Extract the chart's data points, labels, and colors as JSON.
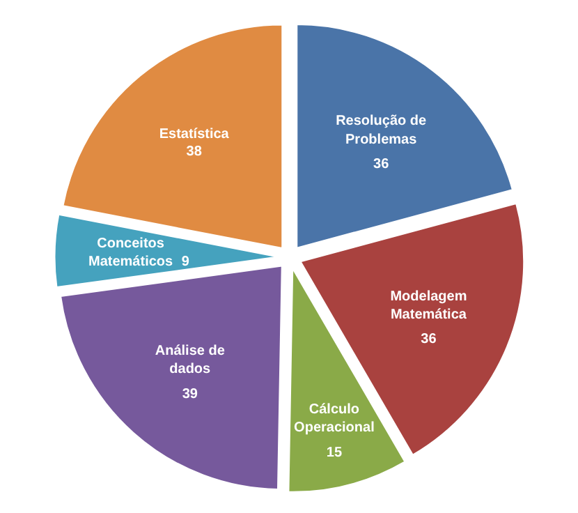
{
  "chart_data": {
    "type": "pie",
    "categories": [
      "Resolução de Problemas",
      "Modelagem Matemática",
      "Cálculo Operacional",
      "Análise de dados",
      "Conceitos Matemáticos",
      "Estatística"
    ],
    "values": [
      36,
      36,
      15,
      39,
      9,
      38
    ],
    "colors": [
      "#4a74a8",
      "#a9423f",
      "#8aaa48",
      "#76599c",
      "#45a2be",
      "#e08b42"
    ],
    "data_labels": true,
    "legend": false
  }
}
